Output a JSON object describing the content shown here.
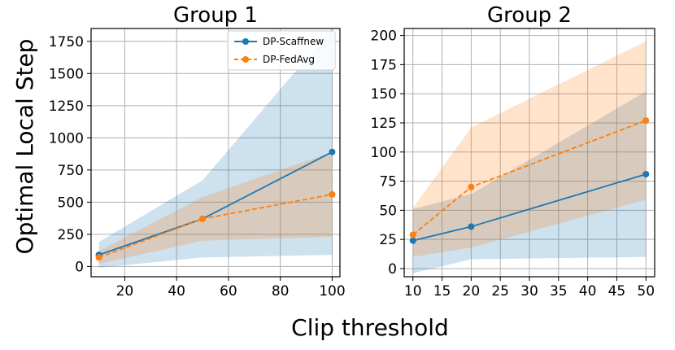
{
  "figure": {
    "xlabel": "Clip threshold",
    "ylabel": "Optimal Local Step"
  },
  "legend": {
    "items": [
      {
        "label": "DP-Scaffnew",
        "color": "#1f77b4",
        "dashed": false
      },
      {
        "label": "DP-FedAvg",
        "color": "#ff7f0e",
        "dashed": true
      }
    ]
  },
  "colors": {
    "scaffnew": "#1f77b4",
    "fedavg": "#ff7f0e"
  },
  "chart_data": [
    {
      "type": "line",
      "title": "Group 1",
      "xlim": [
        7,
        103
      ],
      "ylim": [
        -80,
        1850
      ],
      "xticks": [
        20,
        40,
        60,
        80,
        100
      ],
      "yticks": [
        0,
        250,
        500,
        750,
        1000,
        1250,
        1500,
        1750
      ],
      "x": [
        10,
        50,
        100
      ],
      "series": [
        {
          "name": "DP-Scaffnew",
          "values": [
            90,
            370,
            890
          ],
          "lower": [
            -10,
            70,
            90
          ],
          "upper": [
            190,
            670,
            1850
          ]
        },
        {
          "name": "DP-FedAvg",
          "values": [
            70,
            370,
            560
          ],
          "lower": [
            20,
            200,
            230
          ],
          "upper": [
            120,
            540,
            890
          ]
        }
      ]
    },
    {
      "type": "line",
      "title": "Group 2",
      "xlim": [
        8.5,
        51.5
      ],
      "ylim": [
        -7,
        206
      ],
      "xticks": [
        10,
        15,
        20,
        25,
        30,
        35,
        40,
        45,
        50
      ],
      "yticks": [
        0,
        25,
        50,
        75,
        100,
        125,
        150,
        175,
        200
      ],
      "x": [
        10,
        20,
        50
      ],
      "series": [
        {
          "name": "DP-Scaffnew",
          "values": [
            24,
            36,
            81
          ],
          "lower": [
            -4,
            8,
            10
          ],
          "upper": [
            51,
            64,
            152
          ]
        },
        {
          "name": "DP-FedAvg",
          "values": [
            29,
            70,
            127
          ],
          "lower": [
            10,
            18,
            59
          ],
          "upper": [
            52,
            121,
            195
          ]
        }
      ]
    }
  ]
}
